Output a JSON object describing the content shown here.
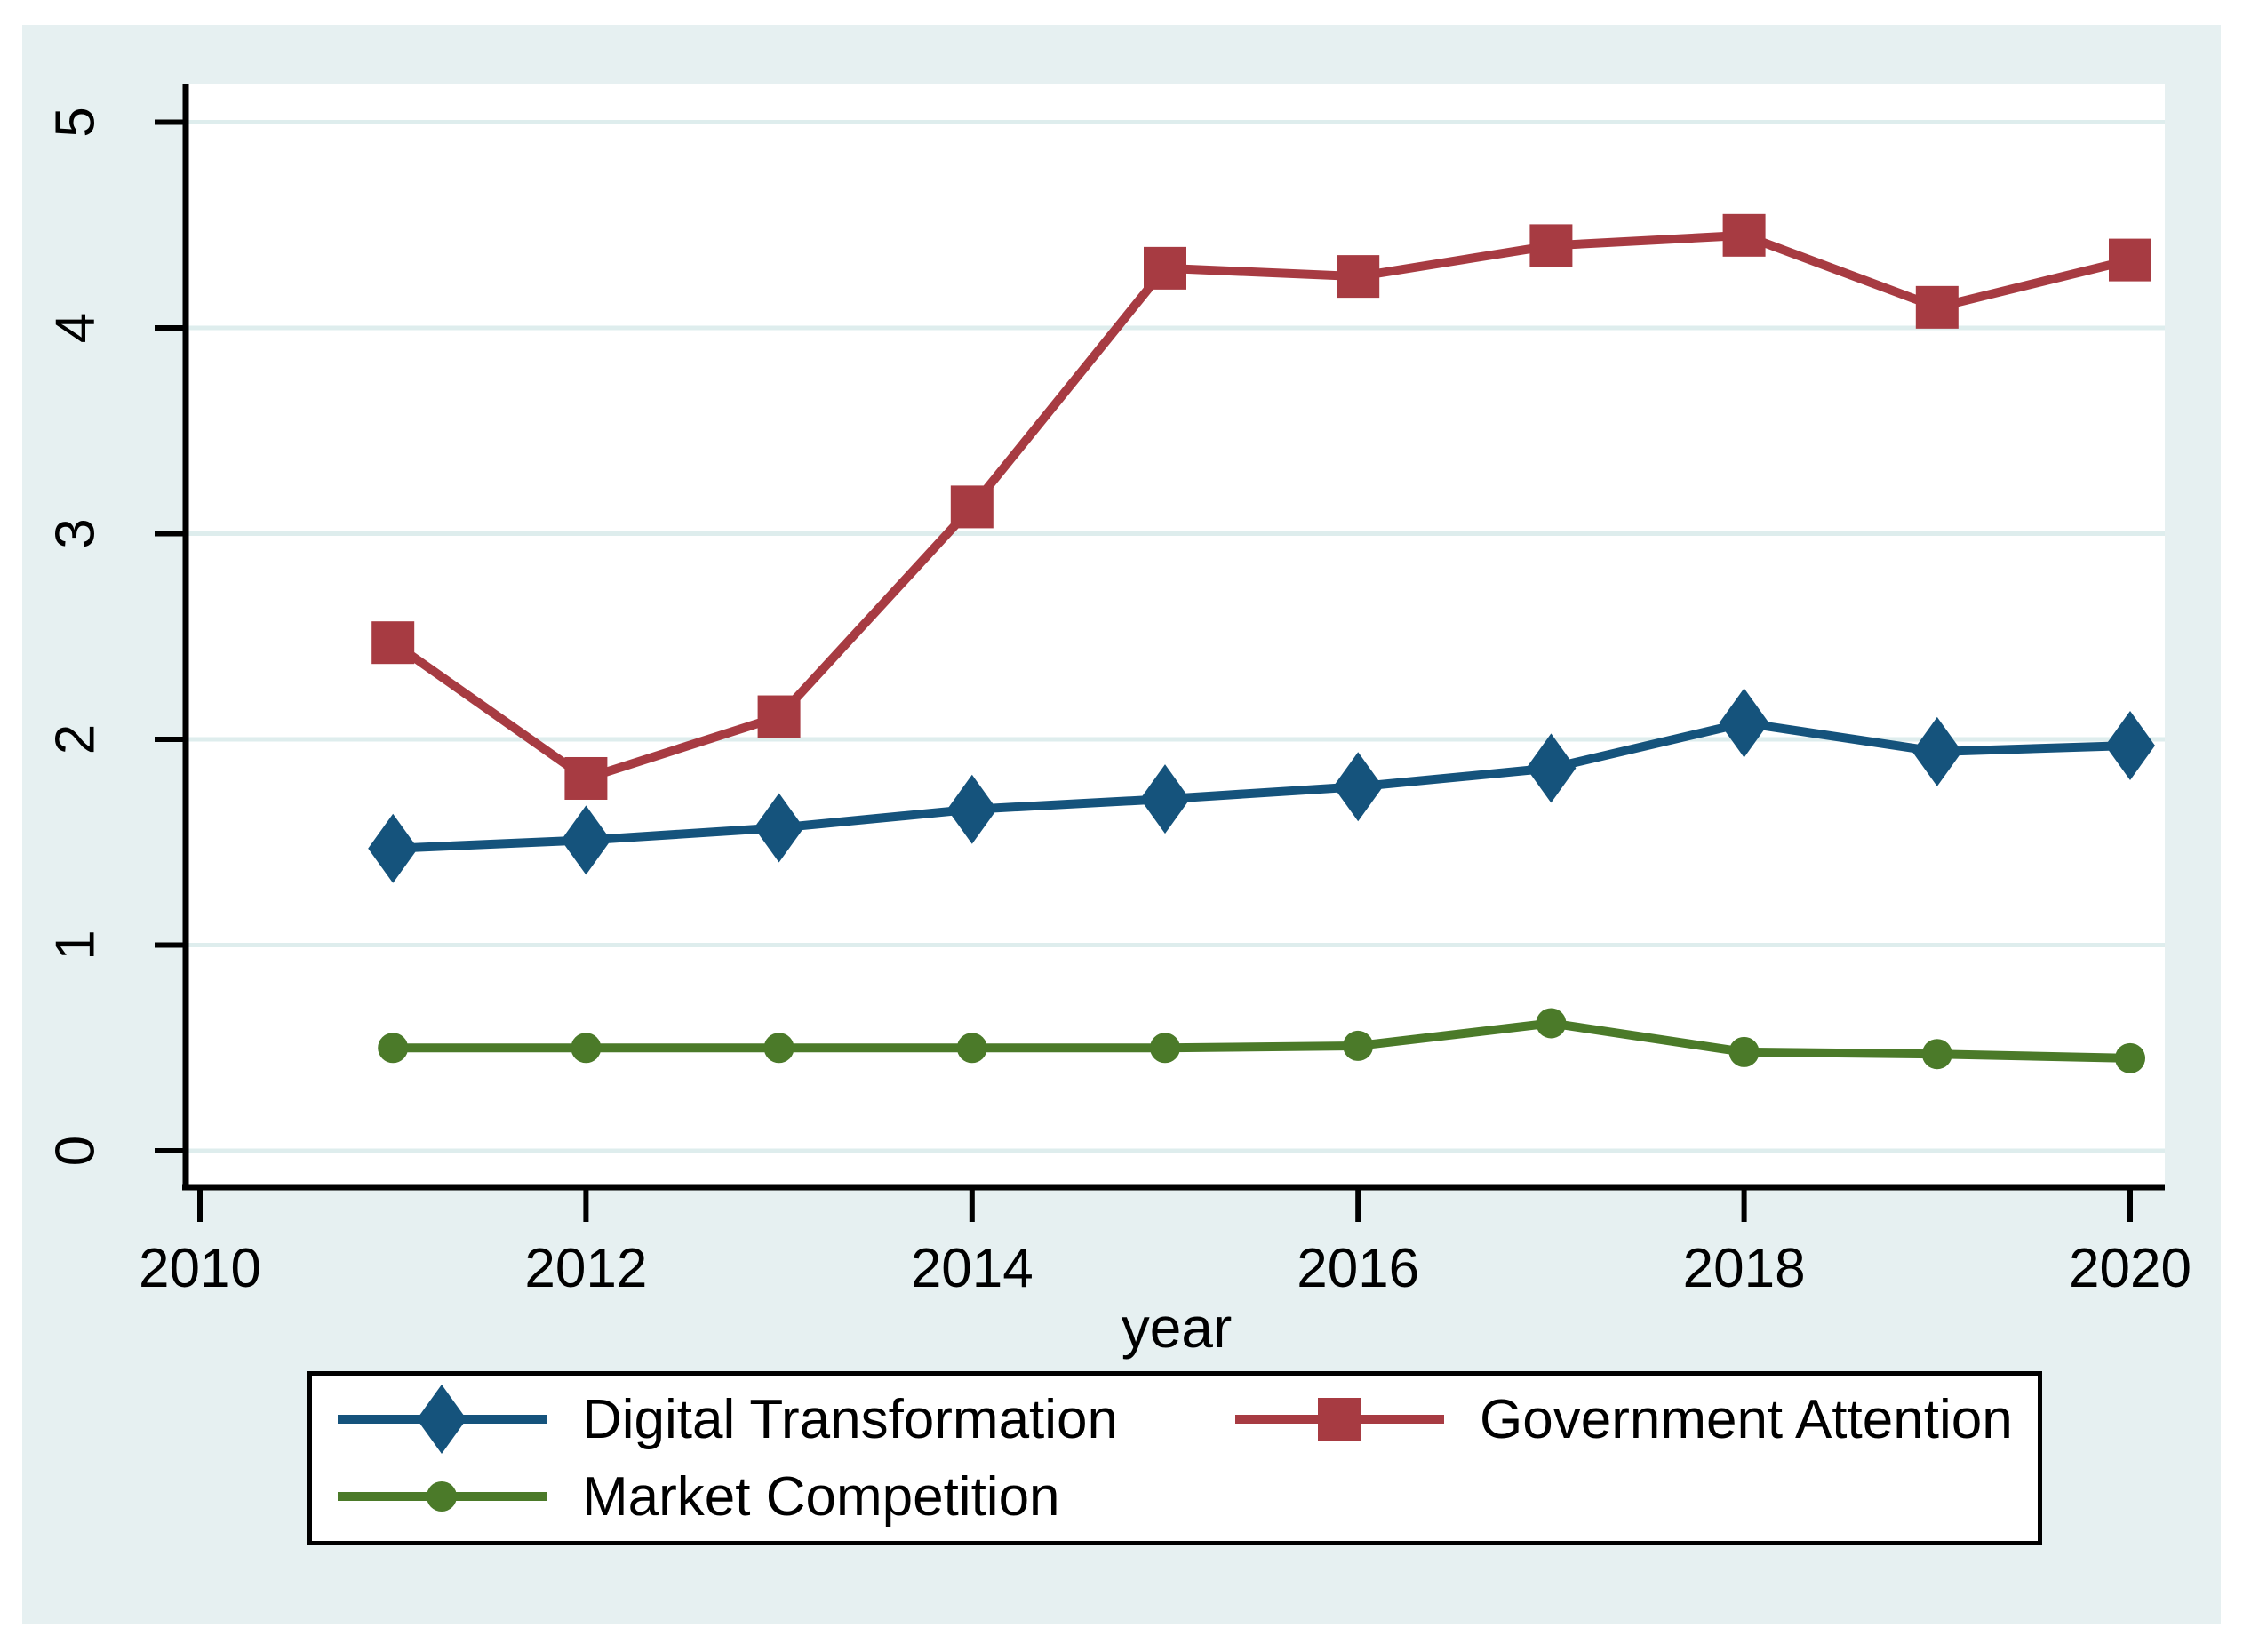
{
  "chart_data": {
    "type": "line",
    "x": [
      2011,
      2012,
      2013,
      2014,
      2015,
      2016,
      2017,
      2018,
      2019,
      2020
    ],
    "series": [
      {
        "name": "Digital Transformation",
        "marker": "diamond",
        "color": "#15537c",
        "values": [
          1.47,
          1.51,
          1.57,
          1.66,
          1.71,
          1.77,
          1.86,
          2.08,
          1.94,
          1.97
        ]
      },
      {
        "name": "Government Attention",
        "marker": "square",
        "color": "#a73b42",
        "values": [
          2.47,
          1.81,
          2.11,
          3.13,
          4.29,
          4.25,
          4.4,
          4.45,
          4.1,
          4.33
        ]
      },
      {
        "name": "Market Competition",
        "marker": "circle",
        "color": "#4b7a29",
        "values": [
          0.5,
          0.5,
          0.5,
          0.5,
          0.5,
          0.51,
          0.62,
          0.48,
          0.47,
          0.45
        ]
      }
    ],
    "title": "",
    "xlabel": "year",
    "ylabel": "",
    "x_ticks": [
      "2010",
      "2012",
      "2014",
      "2016",
      "2018",
      "2020"
    ],
    "x_tick_values": [
      2010,
      2012,
      2014,
      2016,
      2018,
      2020
    ],
    "y_ticks": [
      "0",
      "1",
      "2",
      "3",
      "4",
      "5"
    ],
    "y_tick_values": [
      0,
      1,
      2,
      3,
      4,
      5
    ],
    "xlim": [
      2009.94,
      2020.18
    ],
    "ylim": [
      -0.18,
      5.18
    ],
    "grid": "horizontal",
    "legend_position": "bottom"
  },
  "axis": {
    "x_title": "year"
  },
  "colors": {
    "page_background": "#ffffff",
    "figure_background": "#e6f0f1",
    "plot_background": "#ffffff",
    "gridline": "#deeded",
    "axis_line": "#000000",
    "tick_label": "#000000"
  }
}
